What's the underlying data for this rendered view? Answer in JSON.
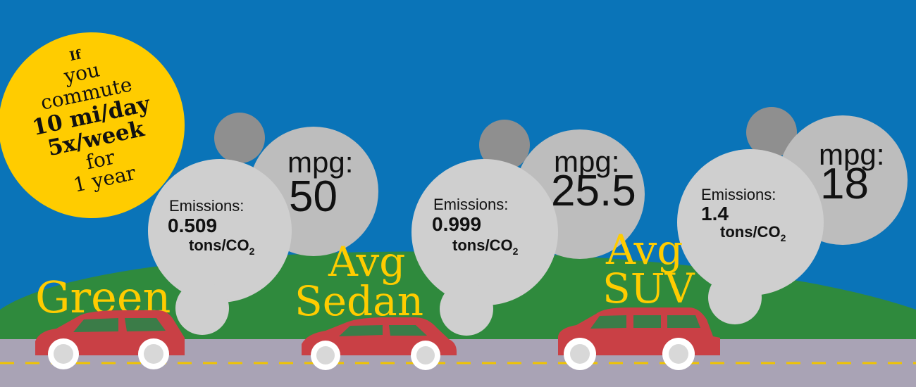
{
  "intro_badge": {
    "lines": [
      "If",
      "you",
      "commute",
      "10 mi/day",
      "5x/week",
      "for",
      "1 year"
    ]
  },
  "vehicles": [
    {
      "label_lines": [
        "Green"
      ],
      "mpg_label": "mpg:",
      "mpg_value": "50",
      "emissions_label": "Emissions:",
      "emissions_value": "0.509",
      "emissions_unit": "tons/CO",
      "emissions_unit_sub": "2"
    },
    {
      "label_lines": [
        "Avg",
        "Sedan"
      ],
      "mpg_label": "mpg:",
      "mpg_value": "25.5",
      "emissions_label": "Emissions:",
      "emissions_value": "0.999",
      "emissions_unit": "tons/CO",
      "emissions_unit_sub": "2"
    },
    {
      "label_lines": [
        "Avg",
        "SUV"
      ],
      "mpg_label": "mpg:",
      "mpg_value": "18",
      "emissions_label": "Emissions:",
      "emissions_value": "1.4",
      "emissions_unit": "tons/CO",
      "emissions_unit_sub": "2"
    }
  ],
  "colors": {
    "sky": "#0a74b8",
    "hill": "#2f8a3d",
    "road": "#a9a3b5",
    "lane": "#f0c400",
    "badge": "#ffcc00",
    "label": "#ffcc00",
    "car": "#c94045",
    "cloud_light": "#cfcfcf",
    "cloud_mid": "#bdbdbd",
    "cloud_dark": "#8f8f8f"
  }
}
